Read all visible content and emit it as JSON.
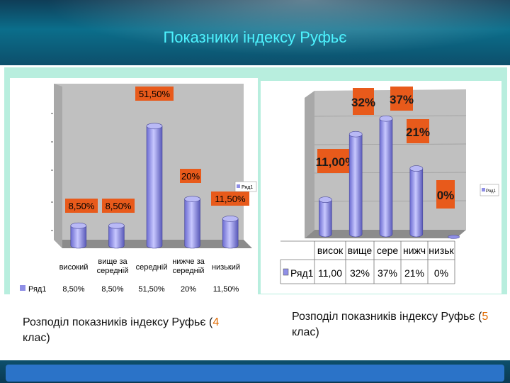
{
  "title": "Показники індексу Руфьє",
  "captions": [
    {
      "text_before": "Розподіл показників індексу Руфьє (",
      "num": "4",
      "text_after": " клас)"
    },
    {
      "text_before": "Розподіл показників індексу Руфьє (",
      "num": "5",
      "text_after": " клас)"
    }
  ],
  "chart_data": [
    {
      "type": "bar",
      "categories": [
        "високий",
        "вище за середній",
        "середній",
        "нижче за середній",
        "низький"
      ],
      "series": [
        {
          "name": "Ряд1",
          "values": [
            8.5,
            8.5,
            51.5,
            20,
            11.5
          ]
        }
      ],
      "data_labels": [
        "8,50%",
        "8,50%",
        "51,50%",
        "20%",
        "11,50%"
      ],
      "table_values": [
        "8,50%",
        "8,50%",
        "51,50%",
        "20%",
        "11,50%"
      ],
      "legend": "Ряд1",
      "ylim": [
        0,
        60
      ]
    },
    {
      "type": "bar",
      "categories": [
        "висок",
        "вище",
        "сере",
        "нижч",
        "низьк"
      ],
      "series": [
        {
          "name": "Ряд1",
          "values": [
            11,
            32,
            37,
            21,
            0
          ]
        }
      ],
      "data_labels": [
        "11,00%",
        "32%",
        "37%",
        "21%",
        "0%"
      ],
      "table_values": [
        "11,00",
        "32%",
        "37%",
        "21%",
        "0%"
      ],
      "legend": "Ряд1",
      "ylim": [
        0,
        40
      ]
    }
  ],
  "colors": {
    "bar": "#8f8fe6",
    "label_bg": "#e85a1b",
    "title": "#4df3ff"
  }
}
